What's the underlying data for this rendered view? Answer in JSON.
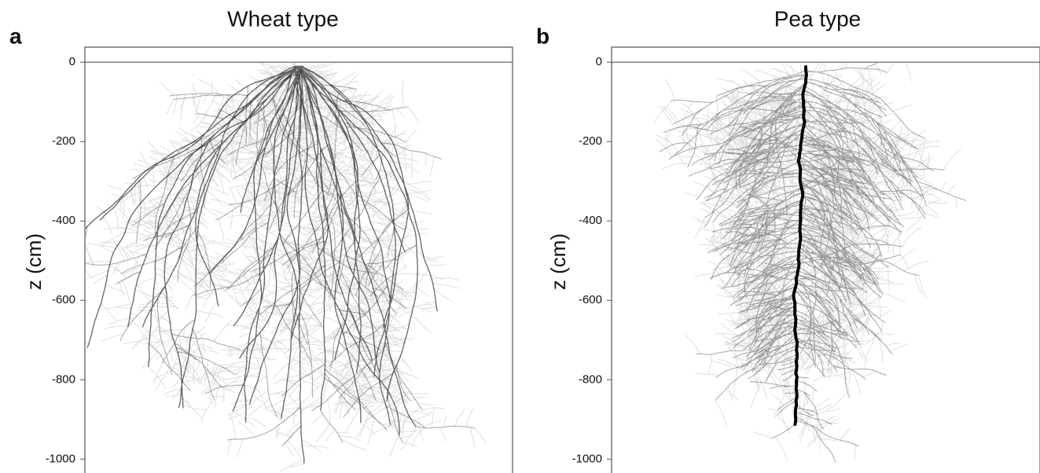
{
  "chart_data": [
    {
      "type": "roots",
      "label": "a",
      "title": "Wheat type",
      "ylabel": "z (cm)",
      "ylim": [
        -1035,
        38
      ],
      "yticks": [
        0,
        -200,
        -400,
        -600,
        -800,
        -1000
      ],
      "root_system": "fibrous"
    },
    {
      "type": "roots",
      "label": "b",
      "title": "Pea type",
      "ylabel": "z (cm)",
      "ylim": [
        -1035,
        38
      ],
      "yticks": [
        0,
        -200,
        -400,
        -600,
        -800,
        -1000
      ],
      "root_system": "taproot"
    }
  ]
}
